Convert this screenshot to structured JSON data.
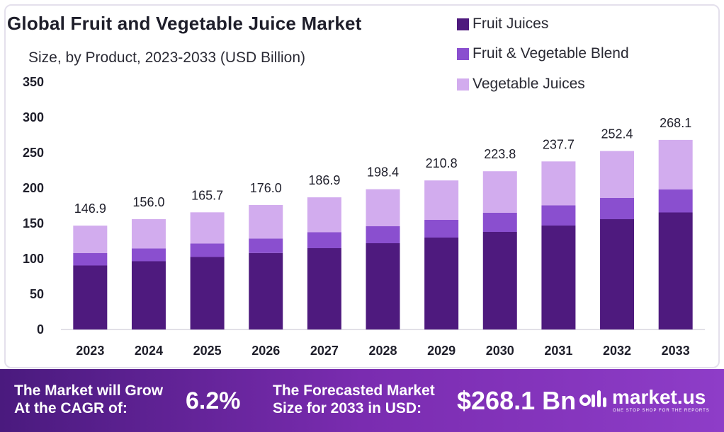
{
  "title": "Global Fruit and Vegetable Juice Market",
  "subtitle": "Size, by Product, 2023-2033 (USD Billion)",
  "chart_data": {
    "type": "bar",
    "stacked": true,
    "categories": [
      "2023",
      "2024",
      "2025",
      "2026",
      "2027",
      "2028",
      "2029",
      "2030",
      "2031",
      "2032",
      "2033"
    ],
    "series": [
      {
        "name": "Fruit Juices",
        "color": "#4e1a7e",
        "values": [
          90.5,
          96.5,
          102.5,
          108.2,
          115.0,
          122.0,
          130.0,
          138.0,
          147.0,
          156.0,
          165.5
        ]
      },
      {
        "name": "Fruit & Vegetable Blend",
        "color": "#8a4fcf",
        "values": [
          17.5,
          18.0,
          19.0,
          20.5,
          22.5,
          24.0,
          25.0,
          27.0,
          28.5,
          30.0,
          32.5
        ]
      },
      {
        "name": "Vegetable Juices",
        "color": "#d2acee",
        "values": [
          38.9,
          41.5,
          44.2,
          47.3,
          49.4,
          52.4,
          55.8,
          58.8,
          62.2,
          66.4,
          70.1
        ]
      }
    ],
    "totals": [
      "146.9",
      "156.0",
      "165.7",
      "176.0",
      "186.9",
      "198.4",
      "210.8",
      "223.8",
      "237.7",
      "252.4",
      "268.1"
    ],
    "ylim": [
      0,
      350
    ],
    "yticks": [
      "0",
      "50",
      "100",
      "150",
      "200",
      "250",
      "300",
      "350"
    ],
    "grid": false,
    "legend_position": "top-right"
  },
  "footer": {
    "cagr_label_line1": "The Market will Grow",
    "cagr_label_line2": "At the CAGR of:",
    "cagr_value": "6.2%",
    "forecast_label_line1": "The Forecasted Market",
    "forecast_label_line2": "Size for 2033 in USD:",
    "forecast_value": "$268.1 Bn",
    "brand_name": "market.us",
    "brand_tagline": "ONE STOP SHOP FOR THE REPORTS"
  },
  "colors": {
    "footer_start": "#4a1a7e",
    "footer_end": "#8e3dc8",
    "text_dark": "#1e1e2a"
  }
}
